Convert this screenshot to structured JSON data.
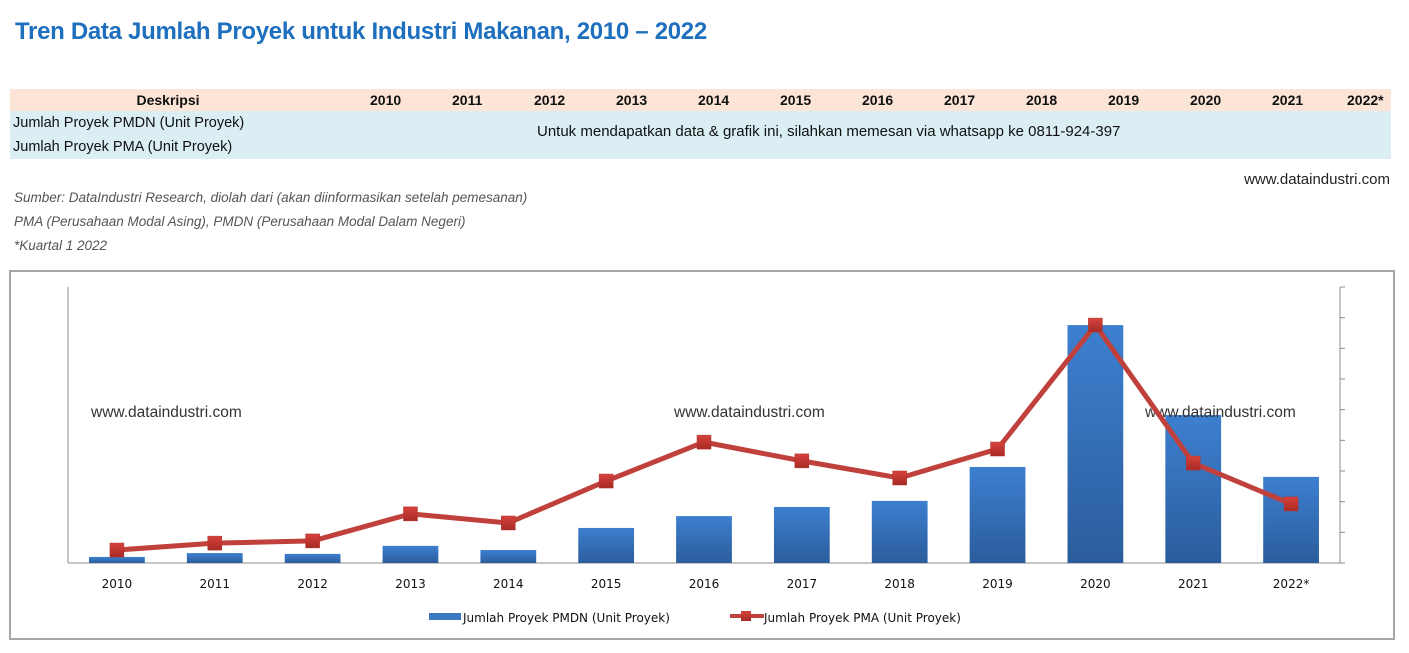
{
  "title": "Tren Data Jumlah Proyek untuk Industri Makanan, 2010 – 2022",
  "table": {
    "header": {
      "description": "Deskripsi",
      "years": [
        "2010",
        "2011",
        "2012",
        "2013",
        "2014",
        "2015",
        "2016",
        "2017",
        "2018",
        "2019",
        "2020",
        "2021",
        "2022*"
      ]
    },
    "rows": [
      {
        "label": "Jumlah Proyek PMDN (Unit Proyek)"
      },
      {
        "label": "Jumlah Proyek PMA (Unit Proyek)"
      }
    ],
    "notice": "Untuk mendapatkan data & grafik ini, silahkan memesan  via whatsapp ke 0811-924-397",
    "background_header": "#fce4d6",
    "background_body": "#daeef3"
  },
  "website": "www.dataindustri.com",
  "notes": [
    "Sumber: DataIndustri Research, diolah dari (akan diinformasikan setelah pemesanan)",
    "PMA (Perusahaan Modal Asing), PMDN (Perusahaan Modal Dalam Negeri)",
    "*Kuartal 1 2022"
  ],
  "chart_data": {
    "type": "bar",
    "title": "",
    "xlabel": "",
    "ylabel": "",
    "value_scale_note": "relative (axes unlabeled); 100 = top of axis",
    "ylim": [
      0,
      100
    ],
    "grid": false,
    "legend_position": "bottom",
    "categories": [
      "2010",
      "2011",
      "2012",
      "2013",
      "2014",
      "2015",
      "2016",
      "2017",
      "2018",
      "2019",
      "2020",
      "2021",
      "2022*"
    ],
    "series": [
      {
        "name": "Jumlah Proyek PMDN (Unit Proyek)",
        "type": "bar",
        "axis": "left",
        "color": "#3a78c2",
        "values": [
          2.2,
          3.6,
          3.3,
          6.2,
          4.7,
          12.7,
          17.0,
          20.3,
          22.5,
          34.8,
          86.2,
          53.6,
          31.2
        ]
      },
      {
        "name": "Jumlah Proyek PMA (Unit Proyek)",
        "type": "line",
        "axis": "right",
        "color": "#c0413c",
        "values": [
          4.7,
          7.2,
          8.0,
          17.8,
          14.5,
          29.7,
          43.8,
          37.0,
          30.8,
          41.3,
          86.2,
          36.2,
          21.4
        ]
      }
    ],
    "watermarks": [
      "www.dataindustri.com",
      "www.dataindustri.com",
      "www.dataindustri.com"
    ]
  }
}
